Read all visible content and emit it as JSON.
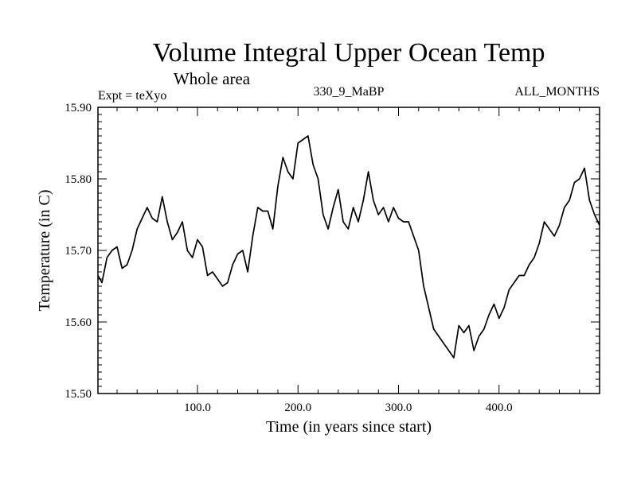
{
  "chart_data": {
    "type": "line",
    "title": "Volume Integral Upper Ocean Temp",
    "subtitle": "Whole area",
    "header_left": "Expt = teXyo",
    "header_center": "330_9_MaBP",
    "header_right": "ALL_MONTHS",
    "xlabel": "Time (in years since start)",
    "ylabel": "Temperature (in C)",
    "xlim": [
      1,
      500
    ],
    "ylim": [
      15.5,
      15.9
    ],
    "xticks": [
      100,
      200,
      300,
      400
    ],
    "xtick_labels": [
      "100.0",
      "200.0",
      "300.0",
      "400.0"
    ],
    "yticks": [
      15.5,
      15.6,
      15.7,
      15.8,
      15.9
    ],
    "ytick_labels": [
      "15.50",
      "15.60",
      "15.70",
      "15.80",
      "15.90"
    ],
    "grid": false,
    "series": [
      {
        "x": [
          1,
          5,
          10,
          15,
          20,
          25,
          30,
          35,
          40,
          45,
          50,
          55,
          60,
          65,
          70,
          75,
          80,
          85,
          90,
          95,
          100,
          105,
          110,
          115,
          120,
          125,
          130,
          135,
          140,
          145,
          150,
          155,
          160,
          165,
          170,
          175,
          180,
          185,
          190,
          195,
          200,
          205,
          210,
          215,
          220,
          225,
          230,
          235,
          240,
          245,
          250,
          255,
          260,
          265,
          270,
          275,
          280,
          285,
          290,
          295,
          300,
          305,
          310,
          315,
          320,
          325,
          330,
          335,
          340,
          345,
          350,
          355,
          360,
          365,
          370,
          375,
          380,
          385,
          390,
          395,
          400,
          405,
          410,
          415,
          420,
          425,
          430,
          435,
          440,
          445,
          450,
          455,
          460,
          465,
          470,
          475,
          480,
          485,
          490,
          495,
          500
        ],
        "values": [
          15.665,
          15.655,
          15.69,
          15.7,
          15.705,
          15.675,
          15.68,
          15.7,
          15.73,
          15.745,
          15.76,
          15.745,
          15.74,
          15.775,
          15.74,
          15.715,
          15.725,
          15.74,
          15.7,
          15.69,
          15.715,
          15.705,
          15.665,
          15.67,
          15.66,
          15.65,
          15.655,
          15.68,
          15.695,
          15.7,
          15.67,
          15.72,
          15.76,
          15.755,
          15.755,
          15.73,
          15.79,
          15.83,
          15.81,
          15.8,
          15.85,
          15.855,
          15.86,
          15.82,
          15.8,
          15.75,
          15.73,
          15.76,
          15.785,
          15.74,
          15.73,
          15.76,
          15.74,
          15.77,
          15.81,
          15.77,
          15.75,
          15.76,
          15.74,
          15.76,
          15.745,
          15.74,
          15.74,
          15.72,
          15.7,
          15.65,
          15.62,
          15.59,
          15.58,
          15.57,
          15.56,
          15.55,
          15.595,
          15.585,
          15.595,
          15.56,
          15.58,
          15.59,
          15.61,
          15.625,
          15.605,
          15.62,
          15.645,
          15.655,
          15.665,
          15.665,
          15.68,
          15.69,
          15.71,
          15.74,
          15.73,
          15.72,
          15.735,
          15.76,
          15.77,
          15.795,
          15.8,
          15.815,
          15.77,
          15.75,
          15.735
        ]
      }
    ]
  }
}
